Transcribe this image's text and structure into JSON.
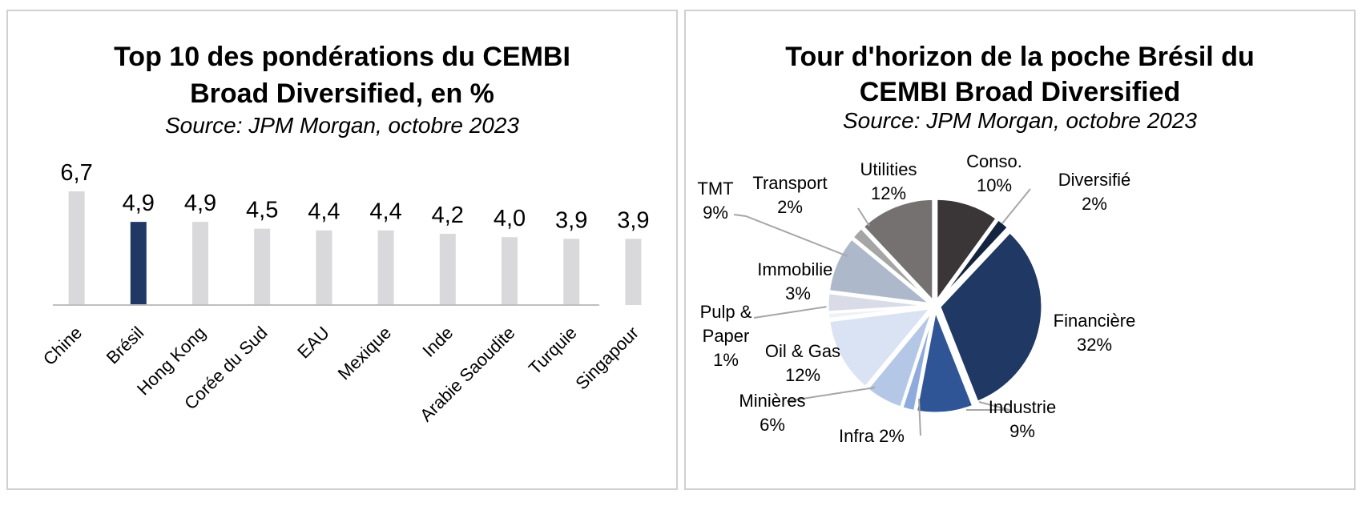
{
  "chart_data": [
    {
      "type": "bar",
      "title_line1": "Top 10 des pondérations du CEMBI",
      "title_line2": "Broad Diversified, en %",
      "subtitle": "Source: JPM Morgan, octobre 2023",
      "categories": [
        "Chine",
        "Brésil",
        "Hong Kong",
        "Corée du Sud",
        "EAU",
        "Mexique",
        "Inde",
        "Arabie Saoudite",
        "Turquie",
        "Singapour"
      ],
      "values": [
        6.7,
        4.9,
        4.9,
        4.5,
        4.4,
        4.4,
        4.2,
        4.0,
        3.9,
        3.9
      ],
      "data_labels": [
        "6,7",
        "4,9",
        "4,9",
        "4,5",
        "4,4",
        "4,4",
        "4,2",
        "4,0",
        "3,9",
        "3,9"
      ],
      "highlight_index": 1,
      "colors": {
        "bar": "#d9d8da",
        "highlight": "#1f3864",
        "axis": "#bfbfbf"
      },
      "ylim": [
        0,
        7
      ],
      "grid": false,
      "legend": "none"
    },
    {
      "type": "pie",
      "title_line1": "Tour d'horizon de la poche Brésil du",
      "title_line2": "CEMBI Broad Diversified",
      "subtitle": "Source: JPM Morgan, octobre 2023",
      "slices": [
        {
          "label_lines": [
            "Conso.",
            "10%"
          ],
          "value": 10,
          "color": "#3a3536"
        },
        {
          "label_lines": [
            "Diversifié",
            "2%"
          ],
          "value": 2,
          "color": "#15243e"
        },
        {
          "label_lines": [
            "Financière",
            "32%"
          ],
          "value": 32,
          "color": "#203864"
        },
        {
          "label_lines": [
            "Industrie",
            "9%"
          ],
          "value": 9,
          "color": "#2f5597"
        },
        {
          "label_lines": [
            "Infra 2%"
          ],
          "value": 2,
          "color": "#8faadc"
        },
        {
          "label_lines": [
            "Minières",
            "6%"
          ],
          "value": 6,
          "color": "#b4c7e7"
        },
        {
          "label_lines": [
            "Oil & Gas",
            "12%"
          ],
          "value": 12,
          "color": "#dae3f3"
        },
        {
          "label_lines": [
            "Pulp &",
            "Paper",
            "1%"
          ],
          "value": 1,
          "color": "#eef1f8"
        },
        {
          "label_lines": [
            "Immobilier",
            "3%"
          ],
          "value": 3,
          "color": "#d9dce6"
        },
        {
          "label_lines": [
            "TMT",
            "9%"
          ],
          "value": 9,
          "color": "#adb9ca"
        },
        {
          "label_lines": [
            "Transport",
            "2%"
          ],
          "value": 2,
          "color": "#a5a5a5"
        },
        {
          "label_lines": [
            "Utilities",
            "12%"
          ],
          "value": 12,
          "color": "#767171"
        }
      ],
      "legend": "none"
    }
  ]
}
